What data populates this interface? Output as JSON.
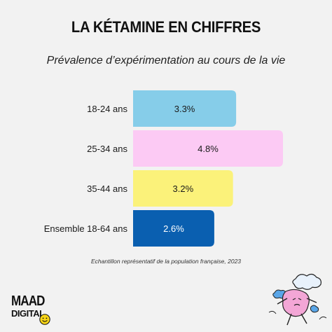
{
  "header": {
    "title": "LA KÉTAMINE EN CHIFFRES",
    "subtitle": "Prévalence d’expérimentation au cours de la vie"
  },
  "footer": {
    "note": "Echantillon représentatif de la population française, 2023",
    "logo_line1": "MAAD",
    "logo_line2": "DIGITAL"
  },
  "colors": {
    "background": "#f2f2f2",
    "bar_18_24": "#86cde9",
    "bar_25_34": "#fccaf4",
    "bar_35_44": "#fbf27a",
    "bar_ensemble": "#0a5fb0",
    "mascot_pink": "#f3a6d6",
    "mascot_blue": "#5aa6e8"
  },
  "icons": {
    "logo_smile": "smiley-face-icon",
    "mascot": "cloud-character-illustration"
  },
  "chart_data": {
    "type": "bar",
    "orientation": "horizontal",
    "categories": [
      "18-24 ans",
      "25-34 ans",
      "35-44 ans",
      "Ensemble 18-64 ans"
    ],
    "values": [
      3.3,
      4.8,
      3.2,
      2.6
    ],
    "value_labels": [
      "3.3%",
      "4.8%",
      "3.2%",
      "2.6%"
    ],
    "bar_colors": [
      "#86cde9",
      "#fccaf4",
      "#fbf27a",
      "#0a5fb0"
    ],
    "label_colors": [
      "#1a1a1a",
      "#1a1a1a",
      "#1a1a1a",
      "#ffffff"
    ],
    "unit": "%",
    "xlim": [
      0,
      4.8
    ],
    "grid": false,
    "legend": "none"
  }
}
